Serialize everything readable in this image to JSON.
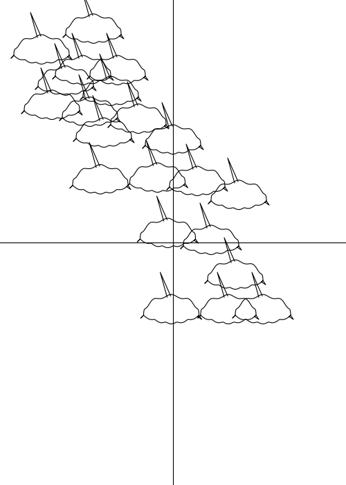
{
  "chart_data": {
    "type": "scatter",
    "marker": "leaf",
    "color": "#000000",
    "x": [
      0.36,
      0.32,
      0.52,
      -0.01,
      0.22,
      -0.03,
      0.38,
      0.14,
      -0.09,
      -0.42,
      0.0,
      -0.2,
      -0.4,
      -0.46,
      -0.76,
      -0.52,
      -0.36,
      -0.7,
      -0.48,
      -0.62,
      -0.32
    ],
    "y": [
      -0.22,
      -0.42,
      -0.42,
      -0.42,
      -0.02,
      0.02,
      0.24,
      0.32,
      0.34,
      0.33,
      0.56,
      0.68,
      0.6,
      1.2,
      1.08,
      0.96,
      0.84,
      0.76,
      0.72,
      0.9,
      0.96
    ],
    "xlim": [
      -1,
      1
    ],
    "ylim": [
      -1.4,
      1.4
    ],
    "tick_labels": false,
    "grid": false
  }
}
